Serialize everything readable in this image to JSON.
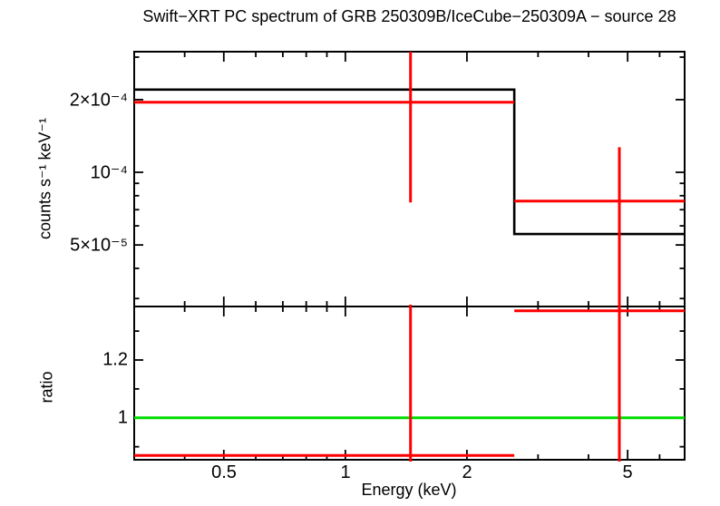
{
  "colors": {
    "background": "#ffffff",
    "frame": "#000000",
    "model": "#000000",
    "data": "#ff0000",
    "unity": "#00dd00"
  },
  "chart_data": {
    "type": "line",
    "title": "Swift−XRT PC spectrum of GRB 250309B/IceCube−250309A − source 28",
    "xlabel": "Energy (keV)",
    "xscale": "log",
    "xlim": [
      0.3,
      6.92
    ],
    "xticks": [
      {
        "v": 0.5,
        "label": "0.5"
      },
      {
        "v": 1,
        "label": "1"
      },
      {
        "v": 2,
        "label": "2"
      },
      {
        "v": 5,
        "label": "5"
      }
    ],
    "xticks_minor": [
      0.4,
      0.6,
      0.7,
      0.8,
      0.9,
      3,
      4,
      6
    ],
    "panels": [
      {
        "name": "spectrum",
        "ylabel": "counts s⁻¹ keV⁻¹",
        "yscale": "log",
        "ylim": [
          2.78e-05,
          0.000316
        ],
        "yticks": [
          {
            "v": 0.0002,
            "label": "2×10⁻⁴"
          },
          {
            "v": 0.0001,
            "label": "10⁻⁴"
          },
          {
            "v": 5e-05,
            "label": "5×10⁻⁵"
          }
        ],
        "yticks_minor": [
          0.0003,
          9e-05,
          8e-05,
          7e-05,
          6e-05,
          4e-05,
          3e-05
        ],
        "model_bins": [
          {
            "e1": 0.3,
            "e2": 2.62,
            "value": 0.00022
          },
          {
            "e1": 2.62,
            "e2": 6.92,
            "value": 5.55e-05
          }
        ],
        "data_bins": [
          {
            "e1": 0.3,
            "e2": 2.62,
            "e_center": 1.45,
            "value": 0.000195,
            "err_lo": 7.5e-05,
            "err_hi": 0.0004,
            "err_hi_clipped": true
          },
          {
            "e1": 2.62,
            "e2": 6.92,
            "e_center": 4.77,
            "value": 7.6e-05,
            "err_lo": 1.5e-05,
            "err_hi": 0.000127,
            "err_lo_clipped": true
          }
        ]
      },
      {
        "name": "ratio",
        "ylabel": "ratio",
        "yscale": "linear",
        "ylim": [
          0.855,
          1.385
        ],
        "unity_value": 1,
        "yticks": [
          {
            "v": 1,
            "label": "1"
          },
          {
            "v": 1.2,
            "label": "1.2"
          }
        ],
        "yticks_minor": [
          0.9,
          1.1,
          1.3
        ],
        "data_bins": [
          {
            "e1": 0.3,
            "e2": 2.62,
            "e_center": 1.45,
            "value": 0.87,
            "err_lo": 0.4,
            "err_hi": 1.42,
            "clipped": "both"
          },
          {
            "e1": 2.62,
            "e2": 6.92,
            "e_center": 4.77,
            "value": 1.37,
            "err_lo": 0.4,
            "err_hi": 1.45,
            "clipped": "both"
          }
        ]
      }
    ]
  }
}
